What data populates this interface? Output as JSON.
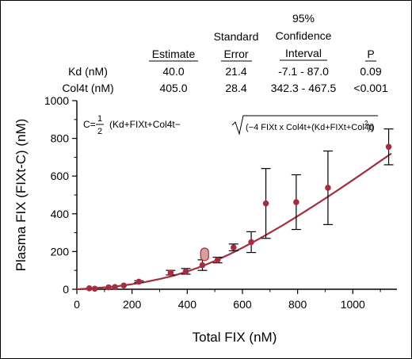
{
  "chart_data": {
    "type": "scatter",
    "xlabel": "Total FIX (nM)",
    "ylabel": "Plasma FIX (FIXt-C) (nM)",
    "xlim": [
      0,
      1160
    ],
    "ylim": [
      0,
      1000
    ],
    "x_ticks": [
      "0",
      "200",
      "400",
      "600",
      "800",
      "1000"
    ],
    "y_ticks": [
      "0",
      "200",
      "400",
      "600",
      "800",
      "1000"
    ],
    "x_tick_values": [
      0,
      200,
      400,
      600,
      800,
      1000
    ],
    "y_tick_values": [
      0,
      200,
      400,
      600,
      800,
      1000
    ],
    "grid": false,
    "colors": {
      "series": "#a52d3f",
      "highlight": "#d9a099",
      "error_bar": "#000000"
    },
    "points": [
      {
        "x": 45,
        "y": 5,
        "err": 0
      },
      {
        "x": 65,
        "y": 3,
        "err": 0
      },
      {
        "x": 115,
        "y": 10,
        "err": 0
      },
      {
        "x": 138,
        "y": 12,
        "err": 0
      },
      {
        "x": 170,
        "y": 20,
        "err": 0
      },
      {
        "x": 225,
        "y": 40,
        "err": 5
      },
      {
        "x": 340,
        "y": 88,
        "err": 12
      },
      {
        "x": 395,
        "y": 95,
        "err": 15
      },
      {
        "x": 455,
        "y": 128,
        "err": 28
      },
      {
        "x": 510,
        "y": 155,
        "err": 15
      },
      {
        "x": 568,
        "y": 222,
        "err": 18
      },
      {
        "x": 632,
        "y": 250,
        "err": 55
      },
      {
        "x": 685,
        "y": 455,
        "err": 185
      },
      {
        "x": 795,
        "y": 462,
        "err": 145
      },
      {
        "x": 910,
        "y": 538,
        "err": 195
      },
      {
        "x": 1130,
        "y": 755,
        "err": 95
      }
    ],
    "highlight_point": {
      "x": 463,
      "y": 185
    },
    "fit_curve": {
      "x": [
        0,
        50,
        100,
        150,
        200,
        250,
        300,
        350,
        400,
        450,
        500,
        550,
        600,
        650,
        700,
        750,
        800,
        850,
        900,
        950,
        1000,
        1050,
        1100,
        1140
      ],
      "y": [
        0,
        4,
        10,
        17,
        27,
        39,
        54,
        72,
        94,
        120,
        150,
        183,
        220,
        259,
        300,
        343,
        388,
        434,
        481,
        530,
        579,
        629,
        680,
        720
      ]
    },
    "equation": {
      "lhs": "C=",
      "frac_num": "1",
      "frac_den": "2",
      "body": "(Kd+FIXt+Col4t−",
      "sqrt_arg": "(−4 FIXt x Col4t+(Kd+FIXt+Col4t)",
      "exponent": "2",
      "close": "))"
    },
    "table": {
      "headers": {
        "estimate": [
          "Estimate"
        ],
        "std_error": [
          "Standard",
          "Error"
        ],
        "ci": [
          "95%",
          "Confidence",
          "Interval"
        ],
        "p": [
          "P"
        ]
      },
      "rows": [
        {
          "name": "Kd (nM)",
          "estimate": "40.0",
          "std_error": "21.4",
          "ci": "-7.1 - 87.0",
          "p": "0.09"
        },
        {
          "name": "Col4t (nM)",
          "estimate": "405.0",
          "std_error": "28.4",
          "ci": "342.3 - 467.5",
          "p": "<0.001"
        }
      ]
    }
  }
}
